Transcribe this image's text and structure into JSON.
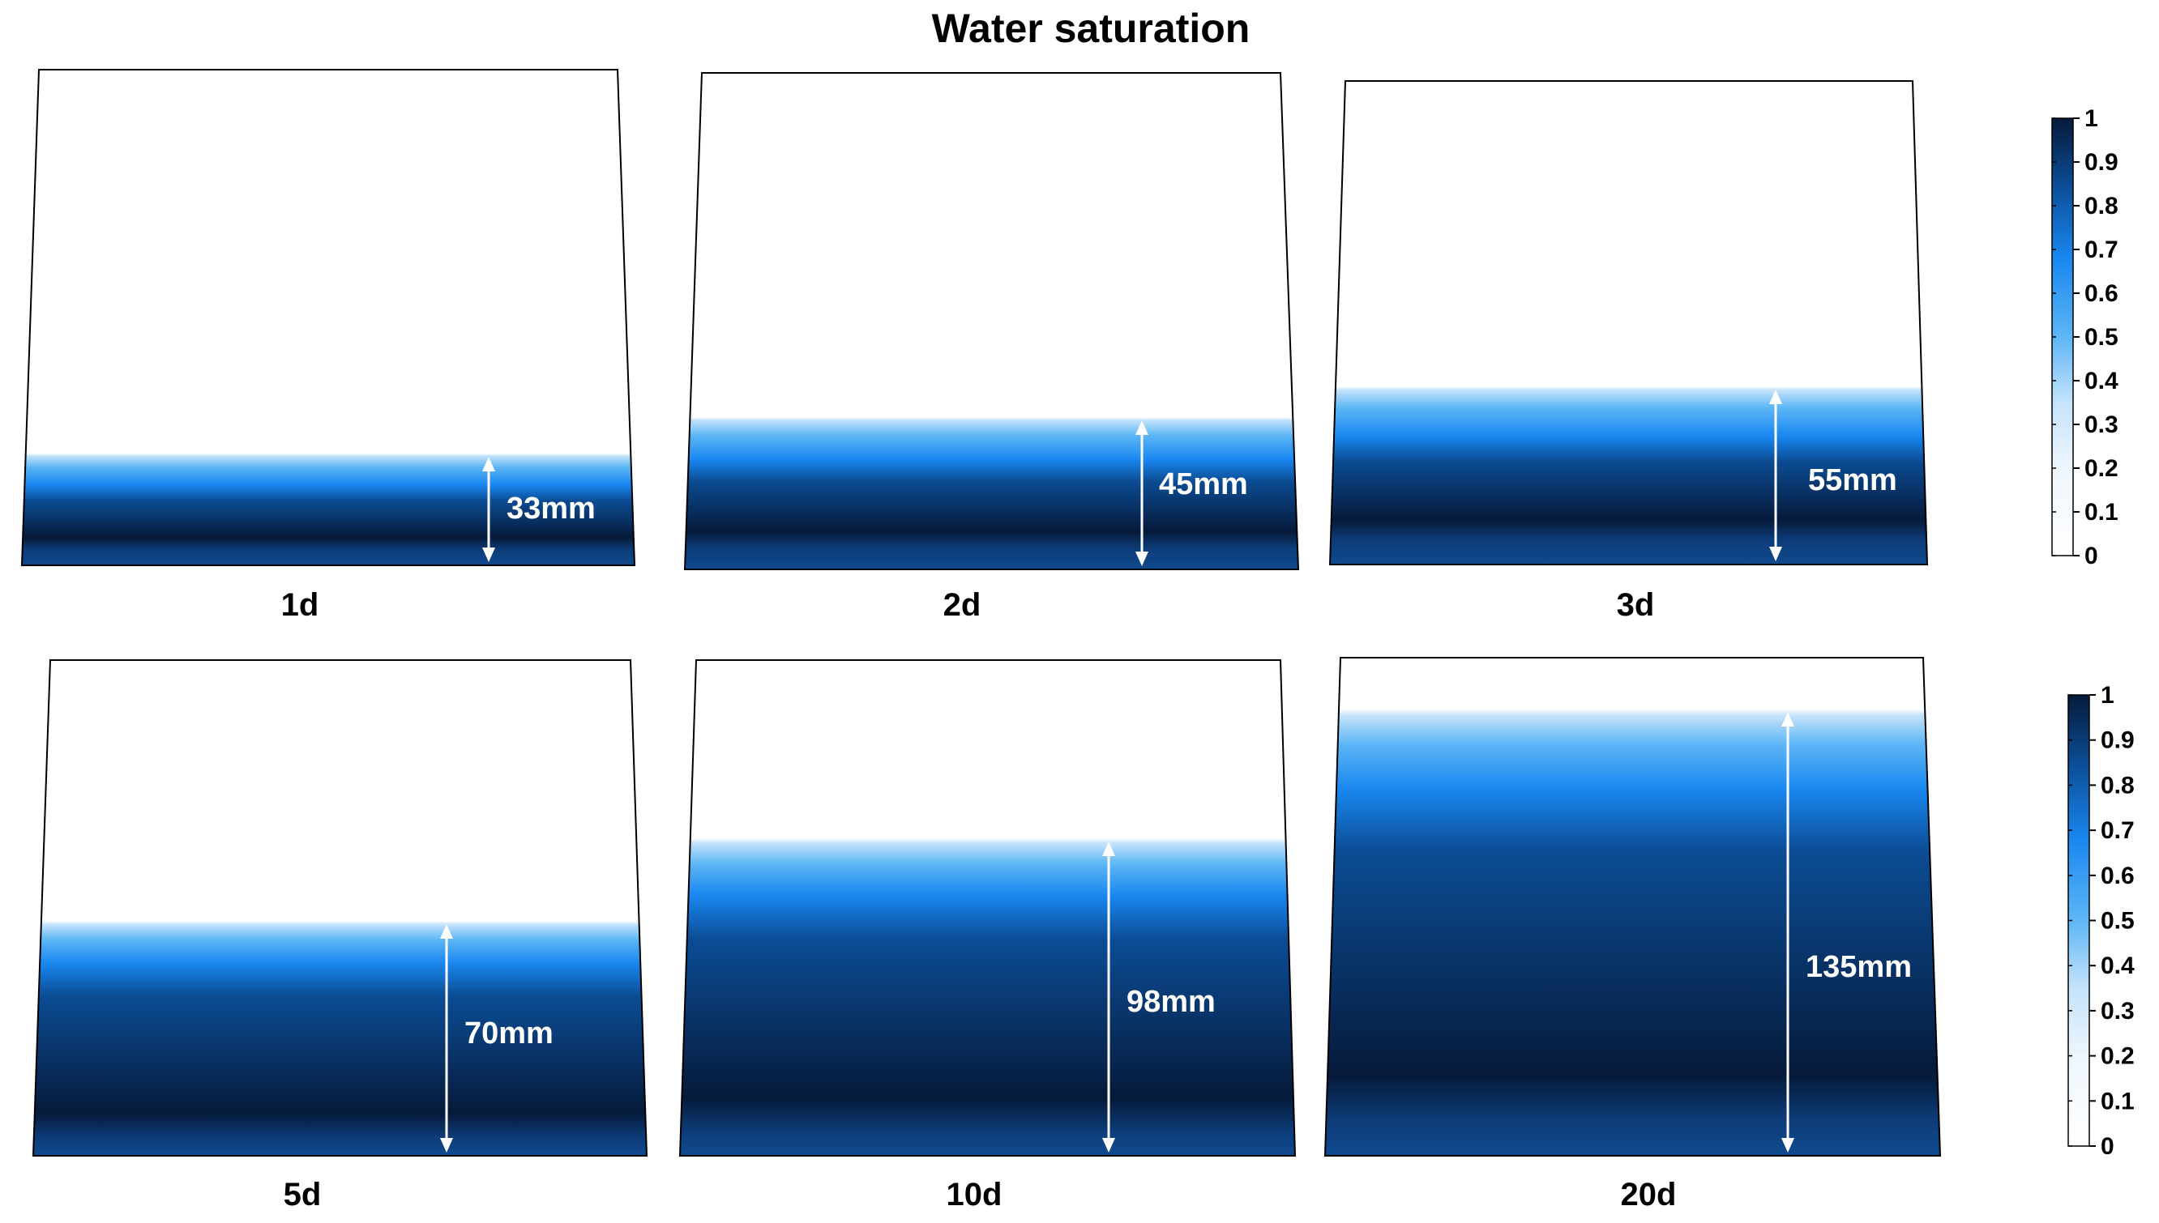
{
  "chart_data": {
    "type": "heatmap",
    "title": "Water saturation",
    "quantity": "Water saturation",
    "unit": "mm",
    "panels": [
      {
        "time_label": "1d",
        "wetting_front_mm": 33,
        "label": "33mm"
      },
      {
        "time_label": "2d",
        "wetting_front_mm": 45,
        "label": "45mm"
      },
      {
        "time_label": "3d",
        "wetting_front_mm": 55,
        "label": "55mm"
      },
      {
        "time_label": "5d",
        "wetting_front_mm": 70,
        "label": "70mm"
      },
      {
        "time_label": "10d",
        "wetting_front_mm": 98,
        "label": "98mm"
      },
      {
        "time_label": "20d",
        "wetting_front_mm": 135,
        "label": "135mm"
      }
    ],
    "colorbar": {
      "range": [
        0,
        1
      ],
      "ticks": [
        "1",
        "0.9",
        "0.8",
        "0.7",
        "0.6",
        "0.5",
        "0.4",
        "0.3",
        "0.2",
        "0.1",
        "0"
      ],
      "colors": {
        "c0": "#ffffff",
        "c03": "#c5e3fb",
        "c05": "#5db6f5",
        "c07": "#1987f0",
        "c085": "#0b4c94",
        "c1": "#061a3a"
      }
    }
  }
}
